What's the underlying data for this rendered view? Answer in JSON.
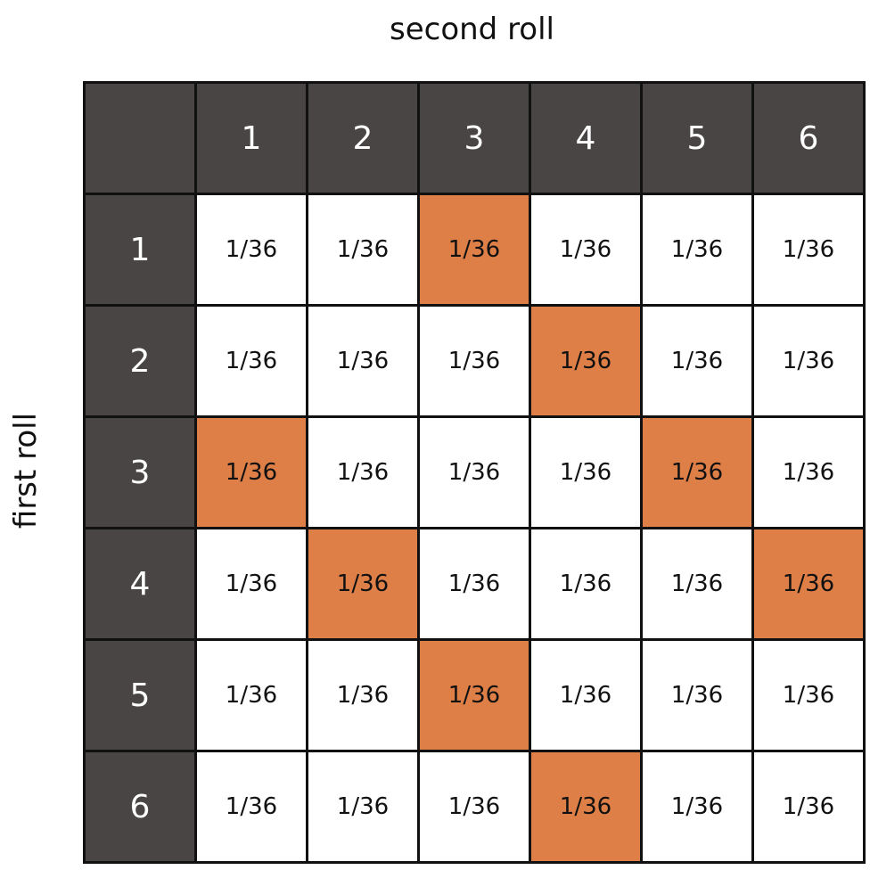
{
  "col_label": "second roll",
  "row_label": "first roll",
  "corner": "",
  "col_headers": [
    "1",
    "2",
    "3",
    "4",
    "5",
    "6"
  ],
  "row_headers": [
    "1",
    "2",
    "3",
    "4",
    "5",
    "6"
  ],
  "cells": [
    [
      "1/36",
      "1/36",
      "1/36",
      "1/36",
      "1/36",
      "1/36"
    ],
    [
      "1/36",
      "1/36",
      "1/36",
      "1/36",
      "1/36",
      "1/36"
    ],
    [
      "1/36",
      "1/36",
      "1/36",
      "1/36",
      "1/36",
      "1/36"
    ],
    [
      "1/36",
      "1/36",
      "1/36",
      "1/36",
      "1/36",
      "1/36"
    ],
    [
      "1/36",
      "1/36",
      "1/36",
      "1/36",
      "1/36",
      "1/36"
    ],
    [
      "1/36",
      "1/36",
      "1/36",
      "1/36",
      "1/36",
      "1/36"
    ]
  ],
  "highlighted": [
    [
      false,
      false,
      true,
      false,
      false,
      false
    ],
    [
      false,
      false,
      false,
      true,
      false,
      false
    ],
    [
      true,
      false,
      false,
      false,
      true,
      false
    ],
    [
      false,
      true,
      false,
      false,
      false,
      true
    ],
    [
      false,
      false,
      true,
      false,
      false,
      false
    ],
    [
      false,
      false,
      false,
      true,
      false,
      false
    ]
  ],
  "colors": {
    "header_bg": "#4a4545",
    "header_text": "#ffffff",
    "cell_bg": "#ffffff",
    "highlight": "#de7f48",
    "grid_line": "#111111"
  }
}
